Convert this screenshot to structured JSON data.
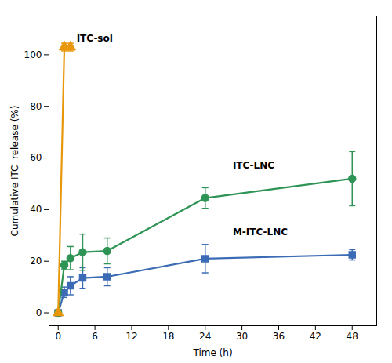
{
  "chart_data": {
    "type": "line",
    "x_label": "Time (h)",
    "y_label": "Cumulative ITC  release (%)",
    "xlim": [
      -1.5,
      52
    ],
    "ylim": [
      -5,
      115
    ],
    "xticks": [
      0,
      6,
      12,
      18,
      24,
      30,
      36,
      42,
      48
    ],
    "yticks": [
      0,
      20,
      40,
      60,
      80,
      100
    ],
    "grid": false,
    "series": [
      {
        "name": "ITC-sol",
        "color": "#E8960A",
        "marker": "triangle",
        "x": [
          0,
          1,
          2
        ],
        "values": [
          0,
          103,
          103
        ],
        "yerr": [
          0,
          1.5,
          1.5
        ]
      },
      {
        "name": "ITC-LNC",
        "color": "#2E9455",
        "marker": "circle",
        "x": [
          0,
          1,
          2,
          4,
          8,
          24,
          48
        ],
        "values": [
          0,
          18.5,
          21.2,
          23.5,
          24.0,
          44.5,
          52.0
        ],
        "yerr": [
          0,
          1.5,
          4.5,
          7.0,
          5.0,
          4.0,
          10.5
        ]
      },
      {
        "name": "M-ITC-LNC",
        "color": "#3B6BB5",
        "marker": "square",
        "x": [
          0,
          1,
          2,
          4,
          8,
          24,
          48
        ],
        "values": [
          0,
          8.0,
          10.5,
          13.5,
          14.0,
          21.0,
          22.5
        ],
        "yerr": [
          0,
          2.0,
          3.5,
          4.0,
          3.5,
          5.5,
          2.0
        ]
      }
    ],
    "annotations": [
      {
        "text": "ITC-sol",
        "x": 3.0,
        "y": 105
      },
      {
        "text": "ITC-LNC",
        "x": 28.5,
        "y": 56
      },
      {
        "text": "M-ITC-LNC",
        "x": 28.5,
        "y": 30
      }
    ]
  }
}
